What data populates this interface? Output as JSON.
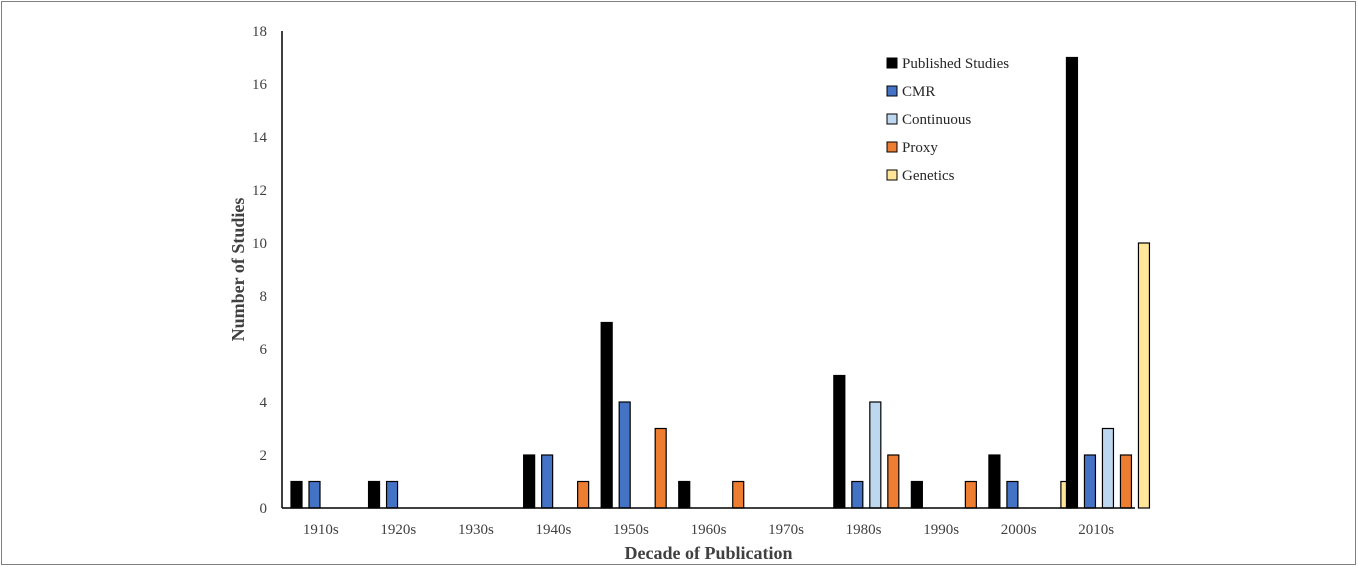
{
  "chart_data": {
    "type": "bar",
    "xlabel": "Decade of Publication",
    "ylabel": "Number of Studies",
    "ylim": [
      0,
      18
    ],
    "yticks": [
      0,
      2,
      4,
      6,
      8,
      10,
      12,
      14,
      16,
      18
    ],
    "grid": false,
    "legend_position": "top-right",
    "categories": [
      "1910s",
      "1920s",
      "1930s",
      "1940s",
      "1950s",
      "1960s",
      "1970s",
      "1980s",
      "1990s",
      "2000s",
      "2010s"
    ],
    "series": [
      {
        "name": "Published Studies",
        "color": "#000000",
        "values": [
          1,
          1,
          0,
          2,
          7,
          1,
          0,
          5,
          1,
          2,
          17
        ]
      },
      {
        "name": "CMR",
        "color": "#4472c4",
        "values": [
          1,
          1,
          0,
          2,
          4,
          0,
          0,
          1,
          0,
          1,
          2
        ]
      },
      {
        "name": "Continuous",
        "color": "#bdd7ee",
        "values": [
          0,
          0,
          0,
          0,
          0,
          0,
          0,
          4,
          0,
          0,
          3
        ]
      },
      {
        "name": "Proxy",
        "color": "#ed7d31",
        "values": [
          0,
          0,
          0,
          1,
          3,
          1,
          0,
          2,
          1,
          0,
          2
        ]
      },
      {
        "name": "Genetics",
        "color": "#ffe699",
        "values": [
          0,
          0,
          0,
          0,
          0,
          0,
          0,
          0,
          0,
          1,
          10
        ]
      }
    ]
  }
}
